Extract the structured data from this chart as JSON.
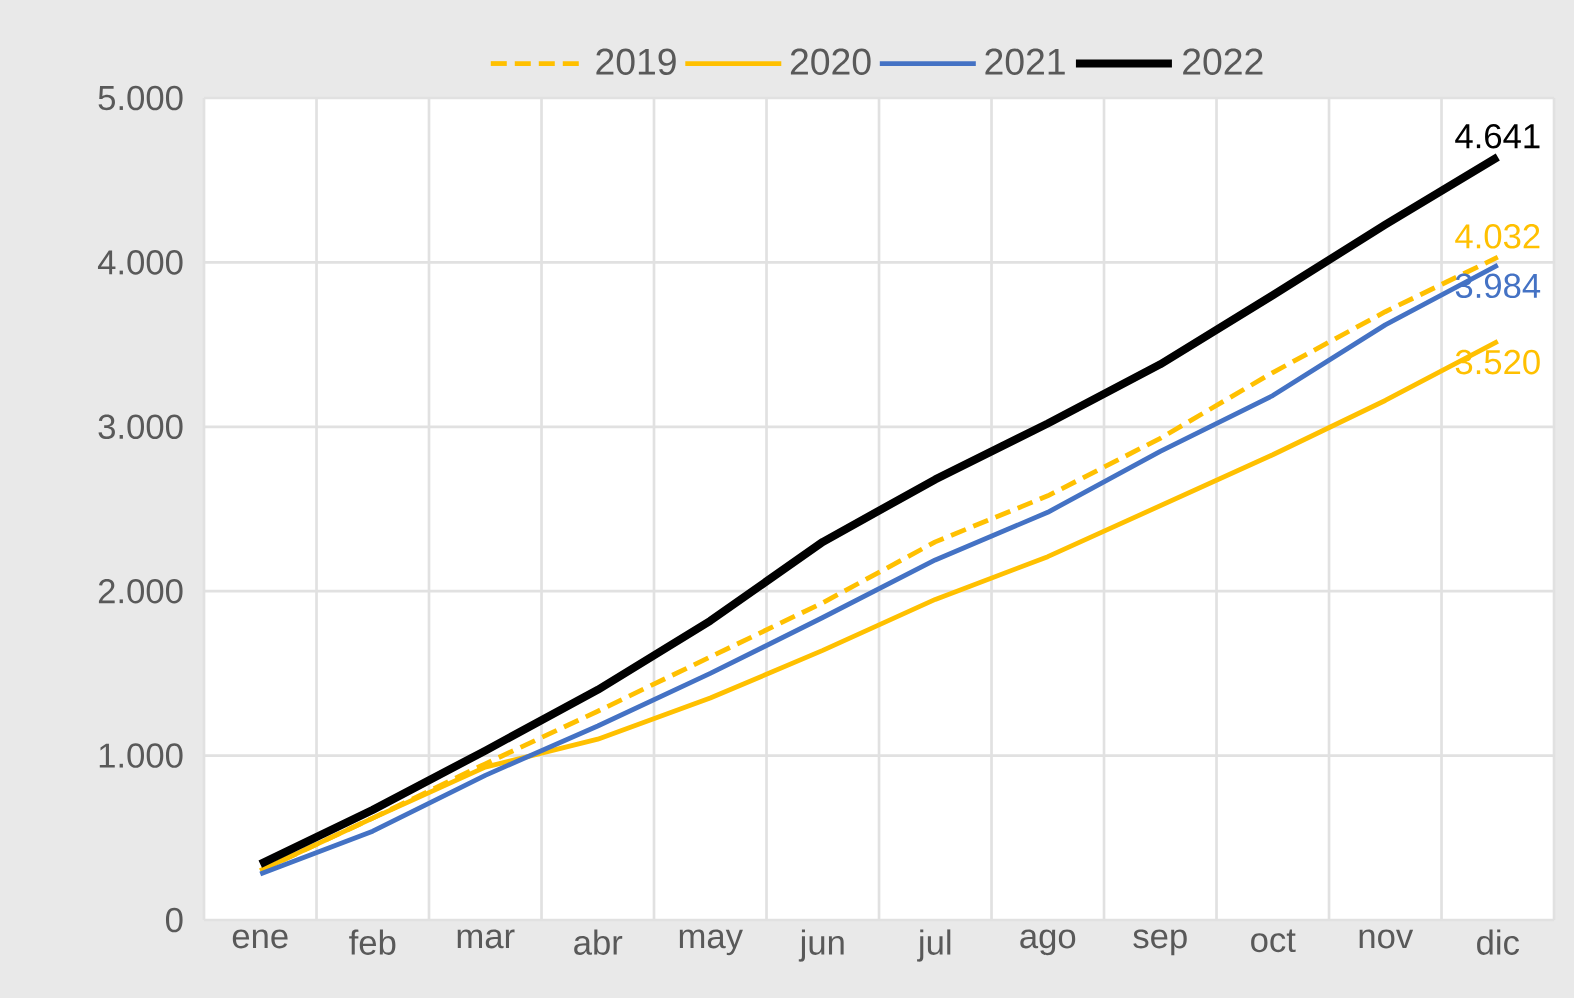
{
  "chart_data": {
    "type": "line",
    "categories": [
      "ene",
      "feb",
      "mar",
      "abr",
      "may",
      "jun",
      "jul",
      "ago",
      "sep",
      "oct",
      "nov",
      "dic"
    ],
    "series": [
      {
        "name": "2019",
        "color": "#ffc000",
        "line_style": "dashed",
        "values": [
          300,
          620,
          950,
          1270,
          1600,
          1930,
          2300,
          2580,
          2930,
          3330,
          3700,
          4032
        ],
        "value_labels": [
          null,
          null,
          null,
          null,
          null,
          null,
          null,
          null,
          null,
          null,
          null,
          "4.032"
        ]
      },
      {
        "name": "2020",
        "color": "#ffc000",
        "line_style": "solid",
        "values": [
          300,
          620,
          930,
          1100,
          1350,
          1640,
          1950,
          2210,
          2520,
          2830,
          3160,
          3520
        ],
        "value_labels": [
          null,
          null,
          null,
          null,
          null,
          null,
          null,
          null,
          null,
          null,
          null,
          "3.520"
        ]
      },
      {
        "name": "2021",
        "color": "#4472c4",
        "line_style": "solid",
        "values": [
          280,
          540,
          880,
          1180,
          1500,
          1840,
          2190,
          2480,
          2850,
          3190,
          3620,
          3984
        ],
        "value_labels": [
          null,
          null,
          null,
          null,
          null,
          null,
          null,
          null,
          null,
          null,
          null,
          "3.984"
        ]
      },
      {
        "name": "2022",
        "color": "#000000",
        "line_style": "solid",
        "values": [
          340,
          670,
          1030,
          1400,
          1820,
          2300,
          2680,
          3020,
          3380,
          3800,
          4230,
          4641
        ],
        "value_labels": [
          null,
          null,
          null,
          null,
          null,
          null,
          null,
          null,
          null,
          null,
          null,
          "4.641"
        ]
      }
    ],
    "ylim": [
      0,
      5000
    ],
    "yticks": [
      0,
      {
        "value": 1000,
        "label": "1.000"
      },
      {
        "value": 2000,
        "label": "2.000"
      },
      {
        "value": 3000,
        "label": "3.000"
      },
      {
        "value": 4000,
        "label": "4.000"
      },
      {
        "value": 5000,
        "label": "5.000"
      }
    ],
    "grid": true,
    "legend": "top",
    "marker": "none"
  }
}
